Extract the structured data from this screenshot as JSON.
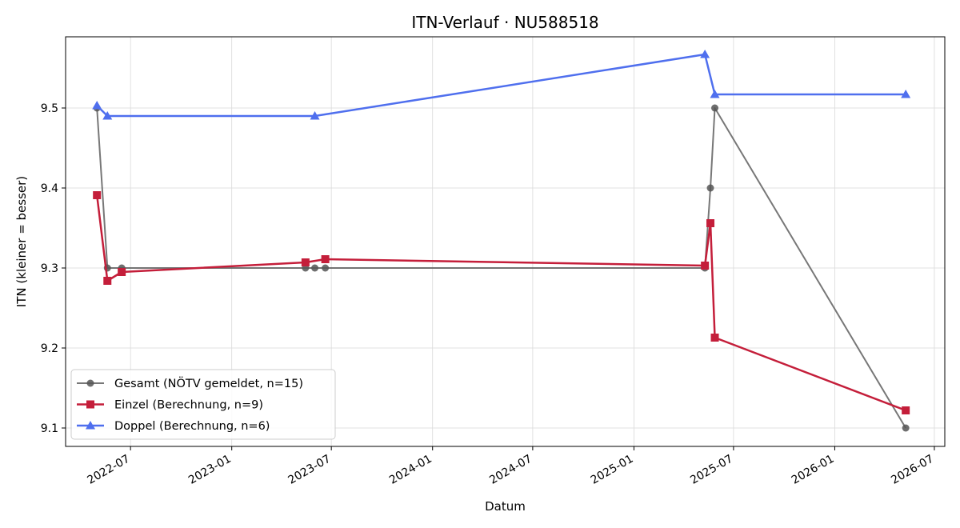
{
  "chart_data": {
    "type": "line",
    "title": "ITN-Verlauf · NU588518",
    "xlabel": "Datum",
    "ylabel": "ITN  (kleiner = besser)",
    "x_ticks": [
      "2022-07",
      "2023-01",
      "2023-07",
      "2024-01",
      "2024-07",
      "2025-01",
      "2025-07",
      "2026-01",
      "2026-07"
    ],
    "y_ticks": [
      "9.1",
      "9.2",
      "9.3",
      "9.4",
      "9.5"
    ],
    "xlim": [
      "2022-03-05",
      "2026-07-20"
    ],
    "ylim": [
      9.077,
      9.589
    ],
    "grid": true,
    "legend_position": "lower-left",
    "series": [
      {
        "name": "Gesamt (NÖTV gemeldet, n=15)",
        "color": "#555555",
        "marker": "circle",
        "points": [
          {
            "x": "2022-05-01",
            "y": 9.5
          },
          {
            "x": "2022-05-20",
            "y": 9.3
          },
          {
            "x": "2022-06-15",
            "y": 9.3
          },
          {
            "x": "2023-05-15",
            "y": 9.3
          },
          {
            "x": "2023-06-01",
            "y": 9.3
          },
          {
            "x": "2023-06-20",
            "y": 9.3
          },
          {
            "x": "2025-05-10",
            "y": 9.3
          },
          {
            "x": "2025-05-20",
            "y": 9.4
          },
          {
            "x": "2025-05-28",
            "y": 9.5
          },
          {
            "x": "2026-05-10",
            "y": 9.1
          }
        ]
      },
      {
        "name": "Einzel (Berechnung, n=9)",
        "color": "#c41e3a",
        "marker": "square",
        "points": [
          {
            "x": "2022-05-01",
            "y": 9.391
          },
          {
            "x": "2022-05-20",
            "y": 9.284
          },
          {
            "x": "2022-06-15",
            "y": 9.295
          },
          {
            "x": "2023-05-15",
            "y": 9.307
          },
          {
            "x": "2023-06-20",
            "y": 9.311
          },
          {
            "x": "2025-05-10",
            "y": 9.303
          },
          {
            "x": "2025-05-20",
            "y": 9.356
          },
          {
            "x": "2025-05-28",
            "y": 9.213
          },
          {
            "x": "2026-05-10",
            "y": 9.122
          }
        ]
      },
      {
        "name": "Doppel (Berechnung, n=6)",
        "color": "#4f6fee",
        "marker": "triangle",
        "points": [
          {
            "x": "2022-05-01",
            "y": 9.503
          },
          {
            "x": "2022-05-20",
            "y": 9.49
          },
          {
            "x": "2023-06-01",
            "y": 9.49
          },
          {
            "x": "2025-05-10",
            "y": 9.567
          },
          {
            "x": "2025-05-28",
            "y": 9.517
          },
          {
            "x": "2026-05-10",
            "y": 9.517
          }
        ]
      }
    ]
  }
}
